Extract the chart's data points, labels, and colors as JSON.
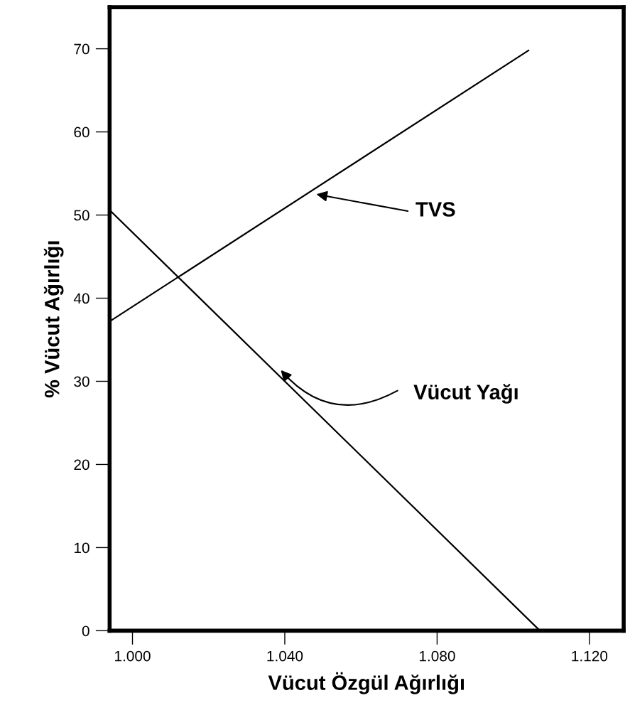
{
  "chart_data": {
    "type": "line",
    "xlabel": "Vücut Özgül Ağırlığı",
    "ylabel": "% Vücut Ağırlığı",
    "series": [
      {
        "color": "#000000",
        "x": [
          0.994,
          1.104
        ],
        "values": [
          37.2,
          69.8
        ]
      },
      {
        "color": "#000000",
        "x": [
          0.994,
          1.107
        ],
        "values": [
          50.6,
          0
        ]
      }
    ],
    "annotations": [
      "TVS",
      "Vücut Yağı"
    ],
    "xlim": [
      0.994,
      1.129
    ],
    "xticks": [
      {
        "value": 1.0,
        "label": "1.000"
      },
      {
        "value": 1.04,
        "label": "1.040"
      },
      {
        "value": 1.08,
        "label": "1.080"
      },
      {
        "value": 1.12,
        "label": "1.120"
      }
    ],
    "ylim": [
      0,
      75
    ],
    "yticks": [
      0,
      10,
      20,
      30,
      40,
      50,
      60,
      70
    ],
    "grid": false,
    "legend": false,
    "marker": "none",
    "line_style": "solid"
  }
}
